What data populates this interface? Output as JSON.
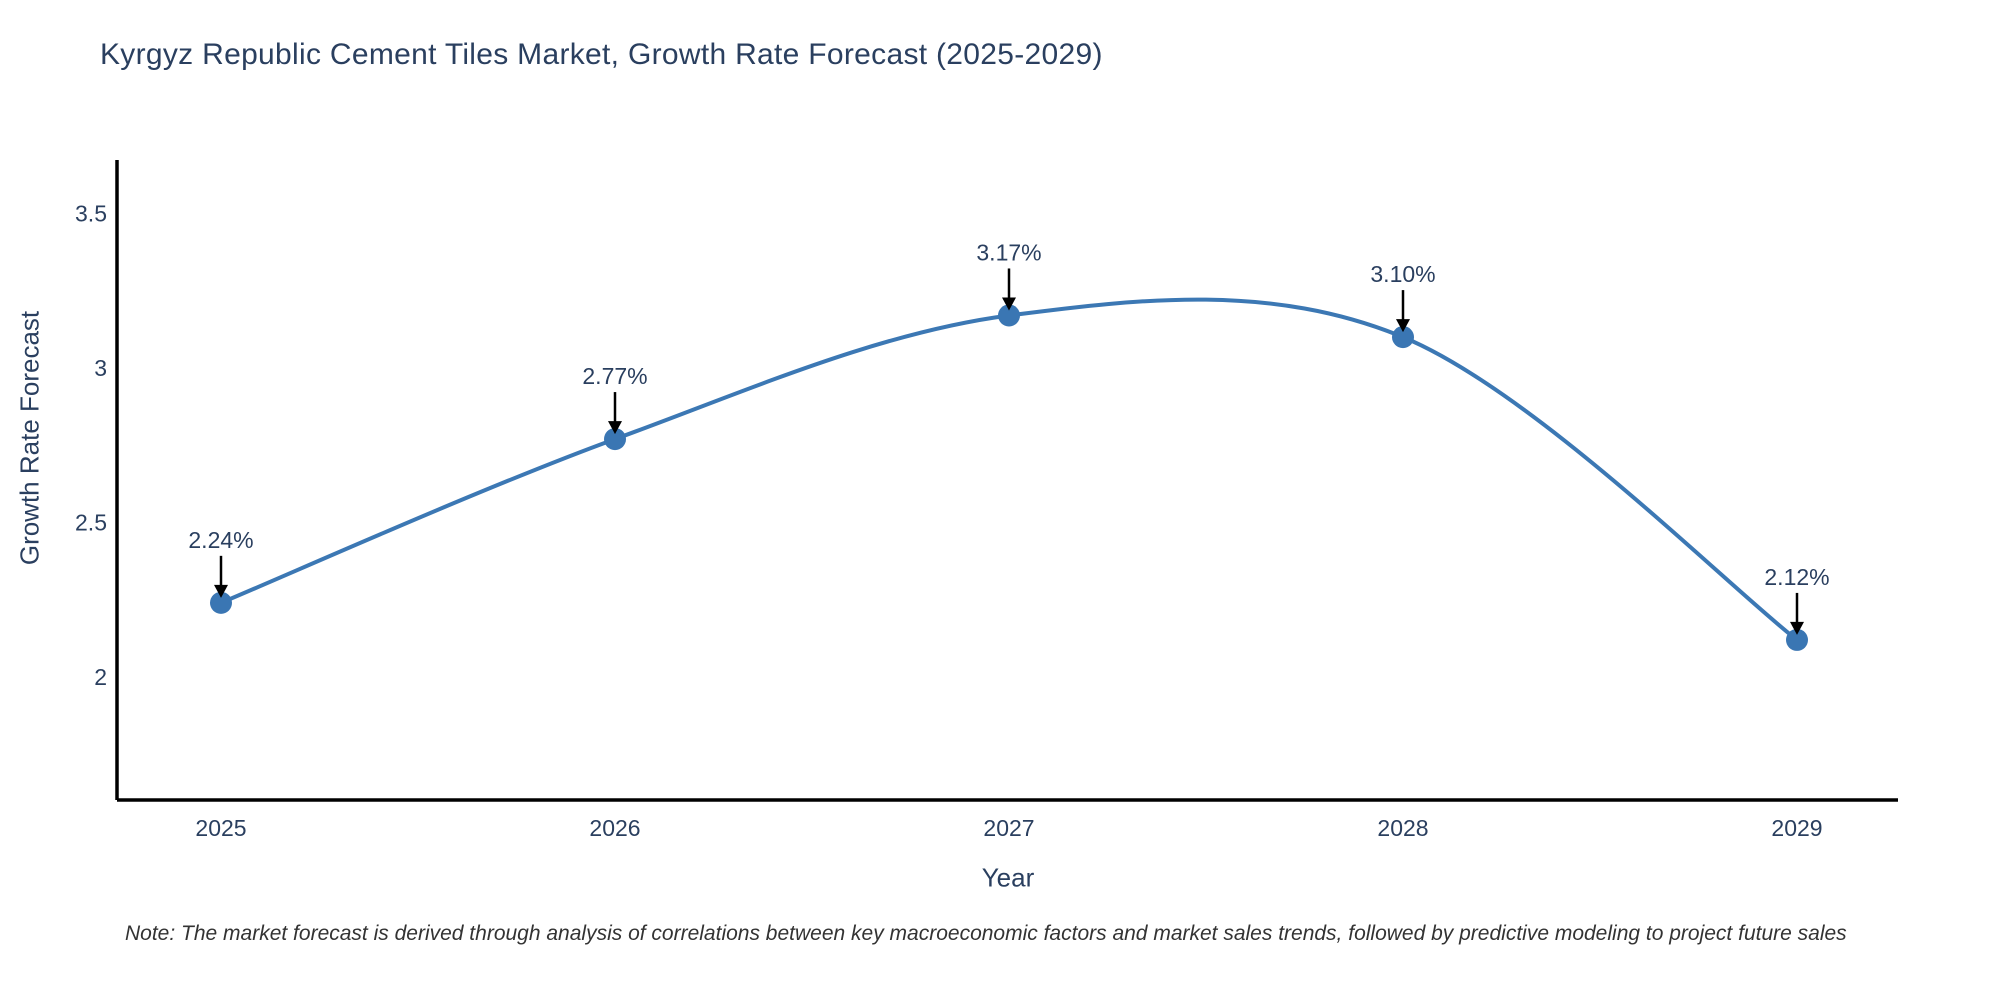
{
  "chart_data": {
    "type": "line",
    "title": "Kyrgyz Republic Cement Tiles Market, Growth Rate Forecast (2025-2029)",
    "xlabel": "Year",
    "ylabel": "Growth Rate Forecast",
    "categories": [
      "2025",
      "2026",
      "2027",
      "2028",
      "2029"
    ],
    "series": [
      {
        "name": "Growth Rate Forecast",
        "values": [
          2.24,
          2.77,
          3.17,
          3.1,
          2.12
        ],
        "point_labels": [
          "2.24%",
          "2.77%",
          "3.17%",
          "3.10%",
          "2.12%"
        ]
      }
    ],
    "line_shape": "spline",
    "markers": true,
    "annotations_with_arrows": true,
    "yticks": [
      2,
      2.5,
      3,
      3.5
    ],
    "ytick_labels": [
      "2",
      "2.5",
      "3",
      "3.5"
    ],
    "ylim": [
      1.6,
      3.67
    ],
    "grid": false,
    "legend_position": "none",
    "colors": {
      "line": "#3c78b4",
      "marker": "#3a76b3",
      "text": "#2a3f5f",
      "axis": "#000000",
      "arrow": "#000000",
      "background": "#ffffff"
    }
  },
  "note": {
    "text": "Note: The market forecast is derived through analysis of correlations between key macroeconomic factors and market sales trends, followed by predictive modeling to project future sales"
  }
}
